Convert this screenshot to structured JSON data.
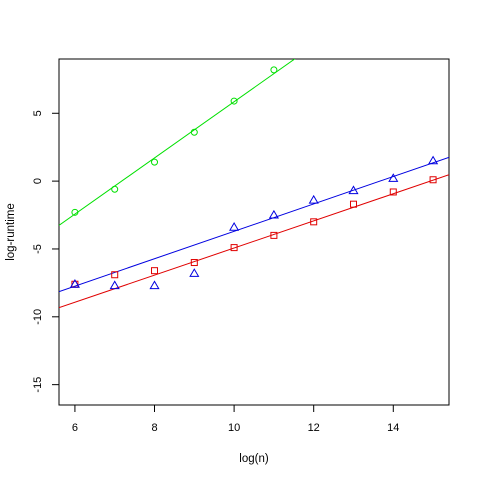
{
  "chart_data": {
    "type": "scatter",
    "title": "",
    "xlabel": "log(n)",
    "ylabel": "log-runtime",
    "xlim": [
      5.6,
      15.4
    ],
    "ylim": [
      -16.5,
      9.0
    ],
    "xticks": [
      6,
      8,
      10,
      12,
      14
    ],
    "yticks": [
      -15,
      -10,
      -5,
      0,
      5
    ],
    "grid": false,
    "legend": "none",
    "series": [
      {
        "marker": "circle",
        "color": "#00e000",
        "x": [
          6,
          7,
          8,
          9,
          10,
          11
        ],
        "y": [
          -2.3,
          -0.6,
          1.4,
          3.6,
          5.9,
          8.2
        ],
        "fit": {
          "intercept": -14.85,
          "slope": 2.07
        }
      },
      {
        "marker": "square",
        "color": "#e00000",
        "x": [
          6,
          7,
          8,
          9,
          10,
          11,
          12,
          13,
          14,
          15
        ],
        "y": [
          -7.6,
          -6.9,
          -6.6,
          -6.0,
          -4.9,
          -4.0,
          -3.0,
          -1.7,
          -0.8,
          0.1
        ],
        "fit": {
          "intercept": -14.93,
          "slope": 1.0
        }
      },
      {
        "marker": "triangle",
        "color": "#0000e0",
        "x": [
          6,
          7,
          8,
          9,
          10,
          11,
          12,
          13,
          14,
          15
        ],
        "y": [
          -7.6,
          -7.7,
          -7.7,
          -6.8,
          -3.4,
          -2.5,
          -1.4,
          -0.7,
          0.2,
          1.5
        ],
        "fit": {
          "intercept": -13.8,
          "slope": 1.01
        }
      }
    ]
  }
}
